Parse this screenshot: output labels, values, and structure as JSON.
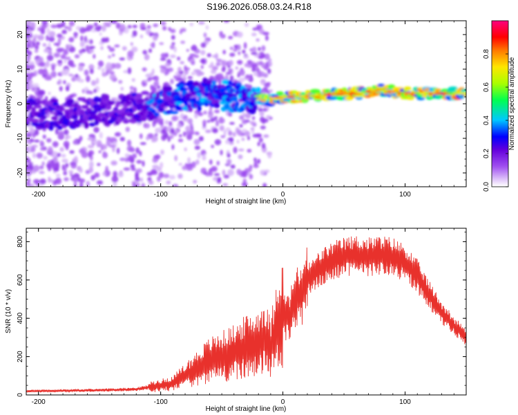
{
  "title": "S196.2026.058.03.24.R18",
  "chart_data": [
    {
      "type": "heatmap",
      "xlabel": "Height of straight line (km)",
      "ylabel": "Frequency (Hz)",
      "xlim": [
        -210,
        150
      ],
      "ylim": [
        -24,
        24
      ],
      "xticks": [
        -200,
        -100,
        0,
        100
      ],
      "yticks": [
        -20,
        -10,
        0,
        10,
        20
      ],
      "colorbar": {
        "label": "Normalized spectral amplitude",
        "range": [
          0,
          1
        ],
        "ticks": [
          "0.0",
          "0.2",
          "0.4",
          "0.6",
          "0.8"
        ]
      },
      "ridge": {
        "description": "Peak frequency ridge (Hz) vs height (km)",
        "x": [
          -210,
          -180,
          -150,
          -120,
          -100,
          -90,
          -80,
          -60,
          -40,
          -20,
          -10,
          0,
          10,
          30,
          60,
          80,
          100,
          120,
          150
        ],
        "y": [
          -3,
          -3,
          -2,
          -1,
          0,
          1,
          2,
          3,
          2,
          1,
          1,
          2,
          2,
          2.5,
          3,
          4,
          3,
          3,
          3
        ]
      }
    },
    {
      "type": "line",
      "xlabel": "Height of straight line (km)",
      "ylabel": "SNR (10 * v/v)",
      "xlim": [
        -210,
        150
      ],
      "ylim": [
        0,
        870
      ],
      "xticks": [
        -200,
        -100,
        0,
        100
      ],
      "yticks": [
        0,
        200,
        400,
        600,
        800
      ],
      "series": [
        {
          "name": "SNR",
          "color": "#e8312c",
          "x": [
            -210,
            -180,
            -150,
            -120,
            -105,
            -90,
            -80,
            -70,
            -60,
            -50,
            -40,
            -30,
            -20,
            -15,
            -10,
            -5,
            0,
            5,
            10,
            15,
            20,
            30,
            40,
            50,
            60,
            70,
            80,
            90,
            100,
            110,
            120,
            130,
            140,
            150
          ],
          "y": [
            20,
            22,
            25,
            30,
            45,
            60,
            100,
            140,
            180,
            200,
            220,
            250,
            270,
            300,
            240,
            380,
            420,
            400,
            500,
            520,
            600,
            660,
            700,
            720,
            730,
            720,
            730,
            720,
            690,
            620,
            520,
            430,
            360,
            300
          ]
        }
      ]
    }
  ]
}
